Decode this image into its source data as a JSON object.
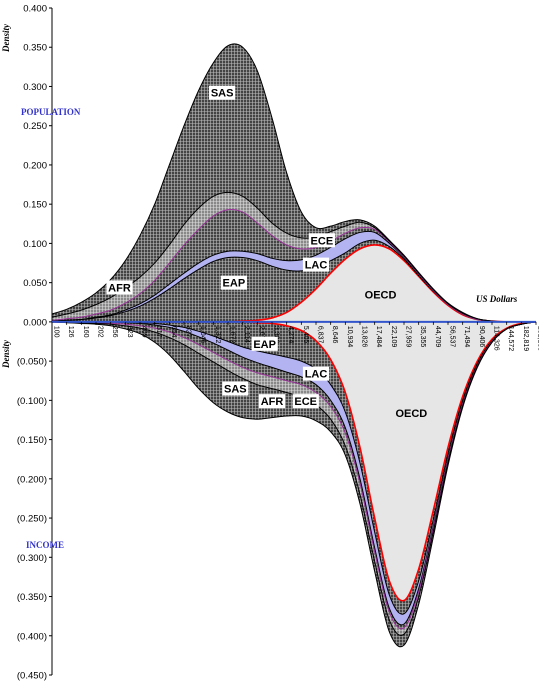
{
  "chart_data": {
    "type": "area",
    "ylabel_top": "Density",
    "ylabel_bottom": "Density",
    "xlabel": "US Dollars",
    "panel_top_label": "POPULATION",
    "panel_bottom_label": "INCOME",
    "ylim": [
      -0.45,
      0.4
    ],
    "yticks": [
      "0.400",
      "0.350",
      "0.300",
      "0.250",
      "0.200",
      "0.150",
      "0.100",
      "0.050",
      "0.000",
      "(0.050)",
      "(0.100)",
      "(0.150)",
      "(0.200)",
      "(0.250)",
      "(0.300)",
      "(0.350)",
      "(0.400)",
      "(0.450)"
    ],
    "xticks": [
      "100",
      "126",
      "160",
      "202",
      "256",
      "323",
      "409",
      "517",
      "654",
      "827",
      "1,046",
      "1,322",
      "1,672",
      "2,114",
      "2,673",
      "3,380",
      "4,274",
      "5,405",
      "6,837",
      "8,646",
      "10,934",
      "13,826",
      "17,484",
      "22,109",
      "27,959",
      "35,355",
      "44,709",
      "56,537",
      "71,494",
      "90,406",
      "114,326",
      "144,572",
      "182,819",
      "231,185"
    ],
    "stack_order": [
      "OECD",
      "ECE",
      "LAC",
      "EAP",
      "AFR",
      "SAS"
    ],
    "colors": {
      "SAS": "#4a4a4a",
      "AFR": "#8a8a8a",
      "EAP": "#5a5a5a",
      "LAC": "#b3b3f2",
      "ECE": "#6e6e6e",
      "OECD": "#e6e6e6",
      "oecd_line": "#ff0000",
      "eap_line": "#993399"
    },
    "population_cumulative": {
      "OECD": [
        0,
        0,
        0,
        0,
        0,
        0,
        0,
        0,
        0,
        0,
        0,
        0,
        0,
        0.001,
        0.002,
        0.005,
        0.012,
        0.025,
        0.042,
        0.062,
        0.08,
        0.093,
        0.098,
        0.093,
        0.078,
        0.058,
        0.038,
        0.021,
        0.009,
        0.003,
        0.001,
        0,
        0,
        0
      ],
      "ECE": [
        0.001,
        0.002,
        0.003,
        0.005,
        0.008,
        0.013,
        0.02,
        0.03,
        0.042,
        0.055,
        0.067,
        0.077,
        0.082,
        0.082,
        0.078,
        0.071,
        0.066,
        0.065,
        0.07,
        0.078,
        0.088,
        0.1,
        0.104,
        0.096,
        0.08,
        0.059,
        0.039,
        0.022,
        0.01,
        0.003,
        0.001,
        0,
        0,
        0
      ],
      "LAC": [
        0.001,
        0.002,
        0.003,
        0.006,
        0.009,
        0.015,
        0.023,
        0.034,
        0.048,
        0.062,
        0.075,
        0.085,
        0.09,
        0.09,
        0.087,
        0.081,
        0.078,
        0.079,
        0.085,
        0.095,
        0.106,
        0.114,
        0.114,
        0.1,
        0.082,
        0.06,
        0.04,
        0.022,
        0.01,
        0.003,
        0.001,
        0,
        0,
        0
      ],
      "EAP": [
        0.002,
        0.004,
        0.006,
        0.01,
        0.015,
        0.024,
        0.036,
        0.053,
        0.075,
        0.098,
        0.118,
        0.135,
        0.143,
        0.14,
        0.126,
        0.11,
        0.098,
        0.093,
        0.095,
        0.103,
        0.113,
        0.12,
        0.118,
        0.102,
        0.083,
        0.061,
        0.04,
        0.022,
        0.01,
        0.003,
        0.001,
        0,
        0,
        0
      ],
      "AFR": [
        0.006,
        0.01,
        0.015,
        0.022,
        0.031,
        0.043,
        0.057,
        0.075,
        0.098,
        0.124,
        0.145,
        0.16,
        0.165,
        0.16,
        0.145,
        0.126,
        0.113,
        0.107,
        0.108,
        0.115,
        0.122,
        0.127,
        0.12,
        0.103,
        0.084,
        0.062,
        0.041,
        0.023,
        0.011,
        0.004,
        0.001,
        0,
        0,
        0
      ],
      "SAS": [
        0.01,
        0.016,
        0.025,
        0.037,
        0.054,
        0.078,
        0.11,
        0.15,
        0.2,
        0.25,
        0.295,
        0.33,
        0.352,
        0.35,
        0.32,
        0.26,
        0.19,
        0.14,
        0.12,
        0.122,
        0.128,
        0.13,
        0.122,
        0.104,
        0.085,
        0.063,
        0.042,
        0.024,
        0.012,
        0.004,
        0.001,
        0,
        0,
        0
      ]
    },
    "income_cumulative": {
      "OECD": [
        0,
        0,
        0,
        0,
        0,
        0,
        0,
        0,
        0,
        0,
        0,
        0,
        0,
        0,
        -0.001,
        -0.002,
        -0.005,
        -0.011,
        -0.024,
        -0.048,
        -0.09,
        -0.16,
        -0.25,
        -0.33,
        -0.355,
        -0.315,
        -0.24,
        -0.16,
        -0.095,
        -0.05,
        -0.022,
        -0.008,
        -0.002,
        0
      ],
      "ECE": [
        0,
        0,
        0,
        0,
        0,
        0,
        -0.001,
        -0.002,
        -0.004,
        -0.007,
        -0.012,
        -0.018,
        -0.025,
        -0.032,
        -0.037,
        -0.041,
        -0.045,
        -0.05,
        -0.06,
        -0.08,
        -0.115,
        -0.18,
        -0.268,
        -0.348,
        -0.372,
        -0.33,
        -0.252,
        -0.168,
        -0.1,
        -0.053,
        -0.024,
        -0.009,
        -0.003,
        0
      ],
      "LAC": [
        0,
        0,
        0,
        0,
        0,
        -0.001,
        -0.002,
        -0.004,
        -0.007,
        -0.012,
        -0.019,
        -0.027,
        -0.036,
        -0.045,
        -0.052,
        -0.058,
        -0.064,
        -0.07,
        -0.08,
        -0.1,
        -0.135,
        -0.2,
        -0.288,
        -0.365,
        -0.385,
        -0.34,
        -0.26,
        -0.174,
        -0.104,
        -0.055,
        -0.025,
        -0.009,
        -0.003,
        0
      ],
      "EAP": [
        0,
        0,
        0,
        -0.001,
        -0.002,
        -0.003,
        -0.005,
        -0.008,
        -0.013,
        -0.02,
        -0.029,
        -0.039,
        -0.049,
        -0.058,
        -0.065,
        -0.07,
        -0.075,
        -0.08,
        -0.09,
        -0.108,
        -0.142,
        -0.206,
        -0.293,
        -0.37,
        -0.39,
        -0.344,
        -0.263,
        -0.176,
        -0.105,
        -0.056,
        -0.025,
        -0.009,
        -0.003,
        0
      ],
      "AFR": [
        0,
        -0.001,
        -0.001,
        -0.002,
        -0.003,
        -0.005,
        -0.008,
        -0.013,
        -0.02,
        -0.029,
        -0.04,
        -0.051,
        -0.062,
        -0.072,
        -0.08,
        -0.085,
        -0.09,
        -0.096,
        -0.106,
        -0.124,
        -0.158,
        -0.22,
        -0.305,
        -0.38,
        -0.398,
        -0.35,
        -0.267,
        -0.179,
        -0.107,
        -0.057,
        -0.026,
        -0.009,
        -0.003,
        0
      ],
      "SAS": [
        0,
        -0.001,
        -0.002,
        -0.003,
        -0.005,
        -0.009,
        -0.015,
        -0.026,
        -0.042,
        -0.063,
        -0.085,
        -0.103,
        -0.115,
        -0.122,
        -0.124,
        -0.122,
        -0.12,
        -0.12,
        -0.126,
        -0.14,
        -0.17,
        -0.232,
        -0.318,
        -0.395,
        -0.412,
        -0.36,
        -0.274,
        -0.183,
        -0.109,
        -0.058,
        -0.026,
        -0.009,
        -0.003,
        0
      ]
    },
    "population_labels": [
      {
        "text": "SAS",
        "region": "SAS",
        "x_index": 11.6,
        "y": 0.292
      },
      {
        "text": "ECE",
        "region": "ECE",
        "x_index": 18.4,
        "y": 0.104
      },
      {
        "text": "LAC",
        "region": "LAC",
        "x_index": 18.0,
        "y": 0.073
      },
      {
        "text": "EAP",
        "region": "EAP",
        "x_index": 12.4,
        "y": 0.05
      },
      {
        "text": "AFR",
        "region": "AFR",
        "x_index": 4.6,
        "y": 0.044
      },
      {
        "text": "OECD",
        "region": "OECD",
        "x_index": 22.4,
        "y": 0.035
      }
    ],
    "income_labels": [
      {
        "text": "EAP",
        "region": "EAP",
        "x_index": 14.5,
        "y": -0.028
      },
      {
        "text": "LAC",
        "region": "LAC",
        "x_index": 18.0,
        "y": -0.066
      },
      {
        "text": "SAS",
        "region": "SAS",
        "x_index": 12.5,
        "y": -0.085
      },
      {
        "text": "AFR",
        "region": "AFR",
        "x_index": 15.0,
        "y": -0.101
      },
      {
        "text": "ECE",
        "region": "ECE",
        "x_index": 17.3,
        "y": -0.101
      },
      {
        "text": "OECD",
        "region": "OECD",
        "x_index": 24.5,
        "y": -0.116
      }
    ]
  }
}
